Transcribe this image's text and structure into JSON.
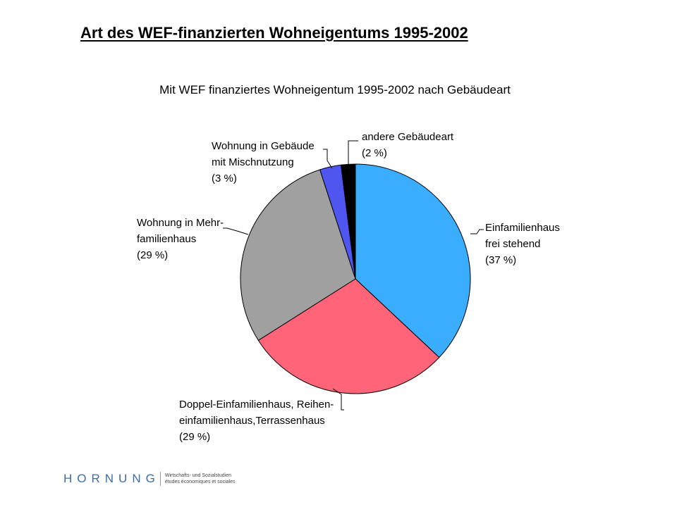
{
  "slide": {
    "title": "Art des WEF-finanzierten Wohneigentums 1995-2002"
  },
  "chart_data": {
    "type": "pie",
    "title": "Mit WEF finanziertes Wohneigentum 1995-2002 nach Gebäudeart",
    "start": "top (12 o'clock), clockwise",
    "slices": [
      {
        "name": "Einfamilienhaus frei stehend",
        "label_lines": [
          "Einfamilienhaus",
          "frei stehend",
          "(37 %)"
        ],
        "value": 37,
        "color": "#3AADFF"
      },
      {
        "name": "Doppel-Einfamilienhaus, Reihen-einfamilienhaus,Terrassenhaus",
        "label_lines": [
          "Doppel-Einfamilienhaus, Reihen-",
          "einfamilienhaus,Terrassenhaus",
          "(29 %)"
        ],
        "value": 29,
        "color": "#FF6478"
      },
      {
        "name": "Wohnung in Mehrfamilienhaus",
        "label_lines": [
          "Wohnung in Mehr-",
          "familienhaus",
          "(29 %)"
        ],
        "value": 29,
        "color": "#A0A0A0"
      },
      {
        "name": "Wohnung in Gebäude mit Mischnutzung",
        "label_lines": [
          "Wohnung in Gebäude",
          "mit Mischnutzung",
          "(3 %)"
        ],
        "value": 3,
        "color": "#4F56F0"
      },
      {
        "name": "andere Gebäudeart",
        "label_lines": [
          "andere Gebäudeart",
          "(2 %)"
        ],
        "value": 2,
        "color": "#000000"
      }
    ]
  },
  "footer": {
    "logo": "HORNUNG",
    "tagline_line1": "Wirtschafts- und Sozialstudien",
    "tagline_line2": "études économiques et sociales"
  }
}
